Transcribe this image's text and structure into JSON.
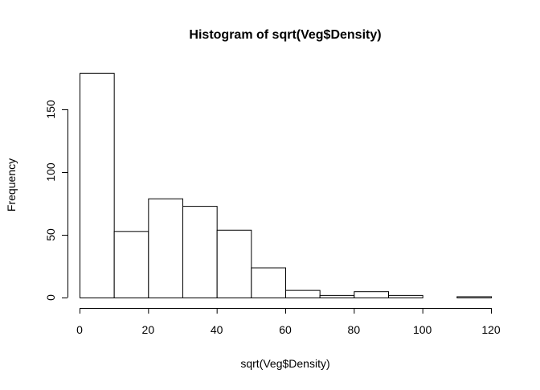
{
  "chart_data": {
    "type": "bar",
    "title": "Histogram of sqrt(Veg$Density)",
    "xlabel": "sqrt(Veg$Density)",
    "ylabel": "Frequency",
    "xlim": [
      0,
      120
    ],
    "ylim": [
      0,
      180
    ],
    "x_ticks": [
      "0",
      "20",
      "40",
      "60",
      "80",
      "100",
      "120"
    ],
    "y_ticks": [
      "0",
      "50",
      "100",
      "150"
    ],
    "bins": [
      {
        "from": 0,
        "to": 10,
        "count": 179
      },
      {
        "from": 10,
        "to": 20,
        "count": 53
      },
      {
        "from": 20,
        "to": 30,
        "count": 79
      },
      {
        "from": 30,
        "to": 40,
        "count": 73
      },
      {
        "from": 40,
        "to": 50,
        "count": 54
      },
      {
        "from": 50,
        "to": 60,
        "count": 24
      },
      {
        "from": 60,
        "to": 70,
        "count": 6
      },
      {
        "from": 70,
        "to": 80,
        "count": 2
      },
      {
        "from": 80,
        "to": 90,
        "count": 5
      },
      {
        "from": 90,
        "to": 100,
        "count": 2
      },
      {
        "from": 100,
        "to": 110,
        "count": 0
      },
      {
        "from": 110,
        "to": 120,
        "count": 1
      }
    ],
    "grid": false,
    "legend": "none",
    "bar_fill": "#ffffff",
    "bar_stroke": "#000000"
  }
}
